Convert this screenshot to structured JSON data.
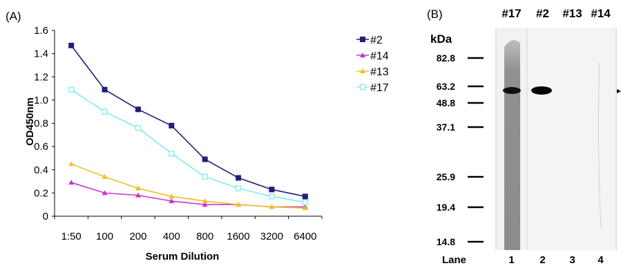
{
  "panel_a": {
    "label": "(A)",
    "chart_data": {
      "type": "line",
      "categories": [
        "1:50",
        "100",
        "200",
        "400",
        "800",
        "1600",
        "3200",
        "6400"
      ],
      "xlabel": "Serum Dilution",
      "ylabel": "OD450nm",
      "ylim": [
        0,
        1.6
      ],
      "yticks": [
        "0",
        "0.2",
        "0.4",
        "0.6",
        "0.8",
        "1.0",
        "1.2",
        "1.4",
        "1.6"
      ],
      "grid": false,
      "legend_position": "right",
      "series": [
        {
          "name": "#2",
          "color": "#1f1f7a",
          "marker": "square",
          "values": [
            1.47,
            1.09,
            0.92,
            0.78,
            0.49,
            0.33,
            0.23,
            0.17
          ]
        },
        {
          "name": "#14",
          "color": "#cc33cc",
          "marker": "triangle",
          "values": [
            0.29,
            0.2,
            0.18,
            0.13,
            0.1,
            0.1,
            0.08,
            0.08
          ]
        },
        {
          "name": "#13",
          "color": "#f0c020",
          "marker": "triangle",
          "values": [
            0.45,
            0.34,
            0.24,
            0.17,
            0.13,
            0.1,
            0.08,
            0.07
          ]
        },
        {
          "name": "#17",
          "color": "#80ecec",
          "marker": "open-square",
          "values": [
            1.09,
            0.9,
            0.76,
            0.54,
            0.34,
            0.24,
            0.17,
            0.12
          ]
        }
      ]
    }
  },
  "panel_b": {
    "label": "(B)",
    "kda_label": "kDa",
    "markers": [
      "82.8",
      "63.2",
      "48.8",
      "37.1",
      "25.9",
      "19.4",
      "14.8"
    ],
    "lanes": [
      {
        "header": "#17",
        "number": "1"
      },
      {
        "header": "#2",
        "number": "2"
      },
      {
        "header": "#13",
        "number": "3"
      },
      {
        "header": "#14",
        "number": "4"
      }
    ],
    "lane_label": "Lane"
  }
}
